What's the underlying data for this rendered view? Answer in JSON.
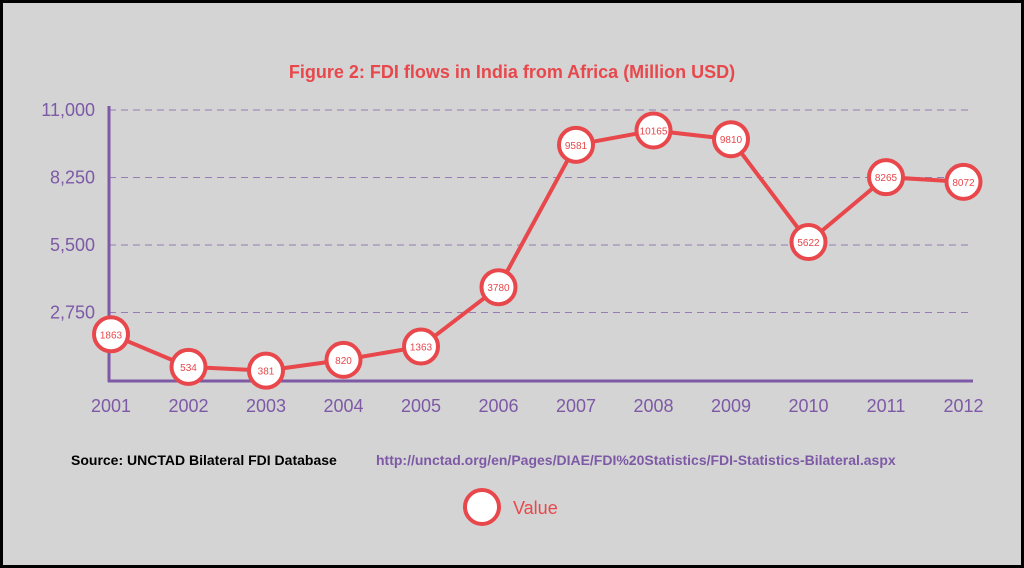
{
  "colors": {
    "background": "#d4d4d4",
    "series": "#e8474b",
    "axis": "#7d59a6",
    "tick_text": "#7d59a6",
    "title": "#e8474b",
    "grid": "#7d59a6",
    "source_text": "#000000",
    "source_url": "#7d59a6"
  },
  "chart_data": {
    "type": "line",
    "title": "Figure 2: FDI flows in India from Africa (Million USD)",
    "xlabel": "",
    "ylabel": "",
    "categories": [
      "2001",
      "2002",
      "2003",
      "2004",
      "2005",
      "2006",
      "2007",
      "2008",
      "2009",
      "2010",
      "2011",
      "2012"
    ],
    "series": [
      {
        "name": "Value",
        "values": [
          1863,
          534,
          381,
          820,
          1363,
          3780,
          9581,
          10165,
          9810,
          5622,
          8265,
          8072
        ],
        "data_labels": [
          "1863",
          "534",
          "381",
          "820",
          "1363",
          "3780",
          "9581",
          "10165",
          "9810",
          "5622",
          "8265",
          "8072"
        ]
      }
    ],
    "ylim": [
      0,
      11000
    ],
    "yticks": [
      2750,
      5500,
      8250,
      11000
    ],
    "ytick_labels": [
      "2,750",
      "5,500",
      "8,250",
      "11,000"
    ],
    "grid": "horizontal dashed",
    "legend_position": "bottom-center"
  },
  "source": {
    "label": "Source: UNCTAD Bilateral FDI Database",
    "url": "http://unctad.org/en/Pages/DIAE/FDI%20Statistics/FDI-Statistics-Bilateral.aspx"
  },
  "legend": {
    "label": "Value"
  }
}
